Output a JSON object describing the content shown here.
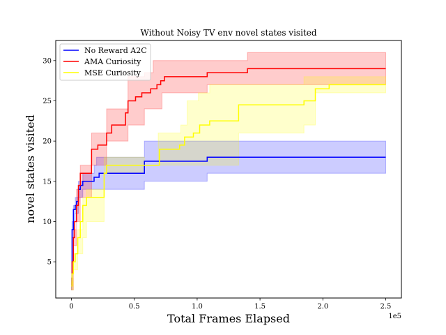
{
  "chart_data": {
    "type": "line",
    "title": "Without Noisy TV env novel states visited",
    "xlabel": "Total Frames Elapsed",
    "ylabel": "novel states visited",
    "x_offset_text": "1e5",
    "xlim": [
      -12500,
      262500
    ],
    "ylim": [
      0.5,
      32.5
    ],
    "x_ticks": [
      0,
      50000,
      100000,
      150000,
      200000,
      250000
    ],
    "x_tick_labels": [
      "0",
      "0.5",
      "1.0",
      "1.5",
      "2.0",
      "2.5"
    ],
    "y_ticks": [
      5,
      10,
      15,
      20,
      25,
      30
    ],
    "y_tick_labels": [
      "5",
      "10",
      "15",
      "20",
      "25",
      "30"
    ],
    "grid": false,
    "legend_position": "top-left",
    "series": [
      {
        "name": "No Reward A2C",
        "color": "#0000ff",
        "fill": "#0000ff",
        "points": [
          [
            0,
            2
          ],
          [
            500,
            9
          ],
          [
            1500,
            11.5
          ],
          [
            3000,
            12
          ],
          [
            4000,
            12.5
          ],
          [
            5500,
            14
          ],
          [
            7000,
            14.5
          ],
          [
            9000,
            15
          ],
          [
            15000,
            15
          ],
          [
            18000,
            15.5
          ],
          [
            22000,
            16
          ],
          [
            58000,
            16
          ],
          [
            58000,
            17.5
          ],
          [
            108000,
            17.5
          ],
          [
            108000,
            18
          ],
          [
            250000,
            18
          ]
        ],
        "upper": [
          [
            0,
            3
          ],
          [
            500,
            10
          ],
          [
            1500,
            12
          ],
          [
            3000,
            13
          ],
          [
            5500,
            15
          ],
          [
            9000,
            16
          ],
          [
            18000,
            17
          ],
          [
            20000,
            18
          ],
          [
            58000,
            18
          ],
          [
            58000,
            20
          ],
          [
            250000,
            20
          ]
        ],
        "lower": [
          [
            0,
            1.5
          ],
          [
            500,
            8
          ],
          [
            1500,
            10
          ],
          [
            3000,
            11
          ],
          [
            5500,
            13
          ],
          [
            9000,
            14
          ],
          [
            18000,
            14
          ],
          [
            22000,
            14
          ],
          [
            58000,
            14
          ],
          [
            58000,
            15
          ],
          [
            108000,
            15
          ],
          [
            108000,
            16
          ],
          [
            250000,
            16
          ]
        ]
      },
      {
        "name": "AMA Curiosity",
        "color": "#ff0000",
        "fill": "#ff0000",
        "points": [
          [
            0,
            2
          ],
          [
            500,
            5
          ],
          [
            1500,
            8
          ],
          [
            2500,
            10
          ],
          [
            4000,
            12
          ],
          [
            5500,
            14.5
          ],
          [
            7000,
            16
          ],
          [
            16000,
            16
          ],
          [
            16000,
            19
          ],
          [
            21000,
            19
          ],
          [
            21000,
            19.5
          ],
          [
            28000,
            19.5
          ],
          [
            28000,
            21
          ],
          [
            32000,
            21
          ],
          [
            32000,
            22
          ],
          [
            43000,
            22
          ],
          [
            43000,
            23.5
          ],
          [
            45000,
            23.5
          ],
          [
            45000,
            25
          ],
          [
            51000,
            25
          ],
          [
            51000,
            25.5
          ],
          [
            56000,
            25.5
          ],
          [
            56000,
            26
          ],
          [
            63000,
            26
          ],
          [
            63000,
            26.5
          ],
          [
            68000,
            26.5
          ],
          [
            68000,
            27
          ],
          [
            71000,
            27
          ],
          [
            71000,
            27.5
          ],
          [
            74000,
            27.5
          ],
          [
            74000,
            28
          ],
          [
            108000,
            28
          ],
          [
            108000,
            28.5
          ],
          [
            140000,
            28.5
          ],
          [
            140000,
            29
          ],
          [
            250000,
            29
          ]
        ],
        "upper": [
          [
            0,
            3
          ],
          [
            1500,
            9
          ],
          [
            4000,
            14
          ],
          [
            7000,
            17
          ],
          [
            16000,
            17
          ],
          [
            16000,
            21
          ],
          [
            28000,
            21
          ],
          [
            28000,
            24
          ],
          [
            45000,
            24
          ],
          [
            45000,
            28
          ],
          [
            58000,
            28
          ],
          [
            58000,
            28.5
          ],
          [
            65000,
            28.5
          ],
          [
            65000,
            30
          ],
          [
            140000,
            30
          ],
          [
            140000,
            31
          ],
          [
            250000,
            31
          ]
        ],
        "lower": [
          [
            0,
            1.5
          ],
          [
            1500,
            7
          ],
          [
            4000,
            10
          ],
          [
            7000,
            13
          ],
          [
            16000,
            13
          ],
          [
            16000,
            17
          ],
          [
            28000,
            17
          ],
          [
            28000,
            20
          ],
          [
            45000,
            20
          ],
          [
            45000,
            22
          ],
          [
            58000,
            22
          ],
          [
            58000,
            24
          ],
          [
            72000,
            24
          ],
          [
            72000,
            26
          ],
          [
            108000,
            26
          ],
          [
            108000,
            27
          ],
          [
            250000,
            27
          ]
        ]
      },
      {
        "name": "MSE Curiosity",
        "color": "#ffff00",
        "fill": "#ffff00",
        "points": [
          [
            0,
            2
          ],
          [
            500,
            3.5
          ],
          [
            1500,
            5
          ],
          [
            3000,
            6
          ],
          [
            5000,
            8
          ],
          [
            7000,
            10
          ],
          [
            9000,
            12
          ],
          [
            12000,
            12
          ],
          [
            12000,
            13
          ],
          [
            26000,
            13
          ],
          [
            26000,
            16
          ],
          [
            28000,
            16
          ],
          [
            28000,
            17
          ],
          [
            70000,
            17
          ],
          [
            70000,
            19
          ],
          [
            86000,
            19
          ],
          [
            86000,
            19.5
          ],
          [
            90000,
            19.5
          ],
          [
            90000,
            20.5
          ],
          [
            97000,
            20.5
          ],
          [
            97000,
            21
          ],
          [
            102000,
            21
          ],
          [
            102000,
            22
          ],
          [
            110000,
            22
          ],
          [
            110000,
            22.5
          ],
          [
            133000,
            22.5
          ],
          [
            133000,
            24.5
          ],
          [
            185000,
            24.5
          ],
          [
            185000,
            25
          ],
          [
            194000,
            25
          ],
          [
            194000,
            26.5
          ],
          [
            205000,
            26.5
          ],
          [
            205000,
            27
          ],
          [
            250000,
            27
          ]
        ],
        "upper": [
          [
            0,
            2.5
          ],
          [
            1500,
            6
          ],
          [
            5000,
            9
          ],
          [
            9000,
            13
          ],
          [
            12000,
            14
          ],
          [
            26000,
            14
          ],
          [
            26000,
            18
          ],
          [
            58000,
            18
          ],
          [
            58000,
            17
          ],
          [
            69000,
            17
          ],
          [
            69000,
            21
          ],
          [
            87000,
            21
          ],
          [
            87000,
            22
          ],
          [
            92000,
            22
          ],
          [
            92000,
            25
          ],
          [
            101000,
            25
          ],
          [
            101000,
            26
          ],
          [
            110000,
            26
          ],
          [
            110000,
            27
          ],
          [
            185000,
            27
          ],
          [
            185000,
            28
          ],
          [
            250000,
            28
          ]
        ],
        "lower": [
          [
            0,
            1.5
          ],
          [
            1500,
            4
          ],
          [
            5000,
            6
          ],
          [
            9000,
            8
          ],
          [
            12000,
            10
          ],
          [
            26000,
            10
          ],
          [
            26000,
            16
          ],
          [
            58000,
            16
          ],
          [
            58000,
            17
          ],
          [
            133000,
            17
          ],
          [
            133000,
            21
          ],
          [
            185000,
            21
          ],
          [
            185000,
            22
          ],
          [
            194000,
            22
          ],
          [
            194000,
            26
          ],
          [
            250000,
            26
          ]
        ]
      }
    ]
  }
}
